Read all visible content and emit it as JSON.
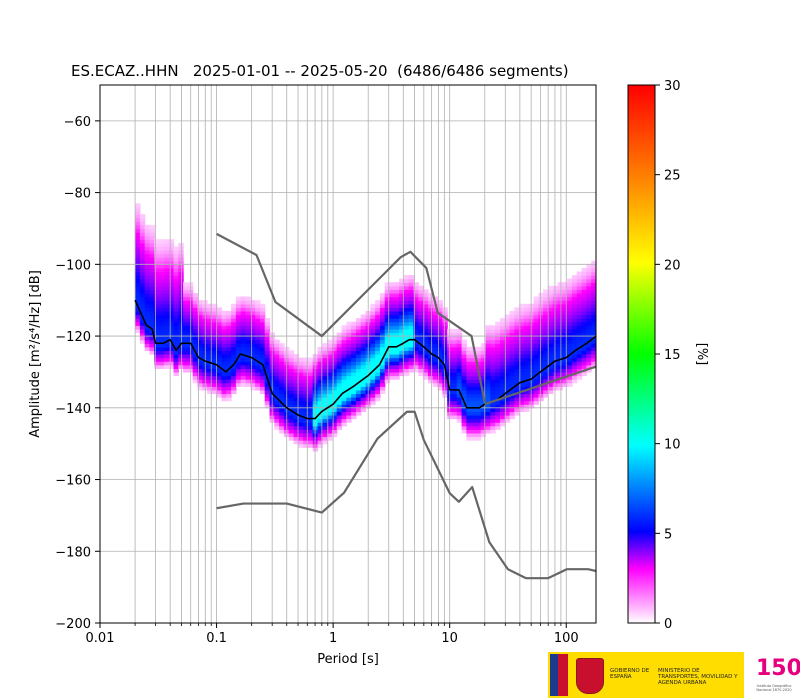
{
  "chart_data": {
    "type": "heatmap",
    "title": "ES.ECAZ..HHN   2025-01-01 -- 2025-05-20  (6486/6486 segments)",
    "xlabel": "Period [s]",
    "ylabel": "Amplitude [m²/s⁴/Hz] [dB]",
    "x_scale": "log",
    "xlim": [
      0.01,
      180
    ],
    "ylim": [
      -200,
      -50
    ],
    "x_ticks": [
      0.01,
      0.1,
      1,
      10,
      100
    ],
    "x_tick_labels": [
      "0.01",
      "0.1",
      "1",
      "10",
      "100"
    ],
    "y_ticks": [
      -200,
      -180,
      -160,
      -140,
      -120,
      -100,
      -80,
      -60
    ],
    "y_tick_labels": [
      "−200",
      "−180",
      "−160",
      "−140",
      "−120",
      "−100",
      "−80",
      "−60"
    ],
    "grid": true,
    "colorbar": {
      "label": "[%]",
      "range": [
        0,
        30
      ],
      "ticks": [
        0,
        5,
        10,
        15,
        20,
        25,
        30
      ],
      "tick_labels": [
        "0",
        "5",
        "10",
        "15",
        "20",
        "25",
        "30"
      ]
    },
    "series": [
      {
        "role": "mode",
        "color": "#000000",
        "x": [
          0.02,
          0.022,
          0.025,
          0.028,
          0.03,
          0.035,
          0.04,
          0.045,
          0.05,
          0.06,
          0.07,
          0.08,
          0.1,
          0.12,
          0.14,
          0.16,
          0.2,
          0.25,
          0.3,
          0.4,
          0.5,
          0.6,
          0.7,
          0.8,
          1.0,
          1.2,
          1.5,
          2.0,
          2.5,
          3.0,
          3.5,
          4.0,
          4.5,
          5.0,
          6.0,
          7.0,
          8.0,
          9.0,
          10,
          12,
          14,
          16,
          18,
          20,
          25,
          30,
          40,
          50,
          60,
          80,
          100,
          120,
          150,
          180
        ],
        "y": [
          -110,
          -113,
          -117,
          -118,
          -122,
          -122,
          -121,
          -124,
          -122,
          -122,
          -126,
          -127,
          -128,
          -130,
          -128,
          -125,
          -126,
          -128,
          -136,
          -140,
          -142,
          -143,
          -143,
          -141,
          -139,
          -136,
          -134,
          -131,
          -128,
          -123,
          -123,
          -122,
          -121,
          -121,
          -123,
          -125,
          -126,
          -128,
          -135,
          -135,
          -140,
          -140,
          -140,
          -139,
          -138,
          -136,
          -133,
          -132,
          -130,
          -127,
          -126,
          -124,
          -122,
          -120
        ]
      },
      {
        "role": "NHNM upper",
        "color": "#666666",
        "x": [
          0.1,
          0.22,
          0.32,
          0.8,
          3.8,
          4.6,
          6.3,
          7.9,
          15.4,
          20
        ],
        "y": [
          -91.5,
          -97.4,
          -110.5,
          -120,
          -98,
          -96.5,
          -101,
          -113.5,
          -120,
          -138.5
        ]
      },
      {
        "role": "NHNM tail",
        "color": "#666666",
        "x": [
          20,
          180
        ],
        "y": [
          -139,
          -128.5
        ]
      },
      {
        "role": "NLNM",
        "color": "#666666",
        "x": [
          0.1,
          0.17,
          0.4,
          0.8,
          1.24,
          2.4,
          4.3,
          5.0,
          6.0,
          10,
          12,
          15.6,
          21.9,
          31.6,
          45,
          70,
          101,
          154,
          180
        ],
        "y": [
          -168,
          -166.7,
          -166.7,
          -169.2,
          -163.7,
          -148.6,
          -141.1,
          -141.1,
          -149,
          -163.8,
          -166.2,
          -162.1,
          -177.5,
          -185,
          -187.5,
          -187.5,
          -185,
          -185,
          -185.5
        ]
      }
    ]
  },
  "logos": {
    "ministry_line1": "GOBIERNO DE ESPAÑA",
    "ministry_line2": "MINISTERIO DE TRANSPORTES, MOVILIDAD Y AGENDA URBANA",
    "ign_50": "150",
    "ign_sub": "Instituto Geográfico Nacional 1870-2020"
  }
}
